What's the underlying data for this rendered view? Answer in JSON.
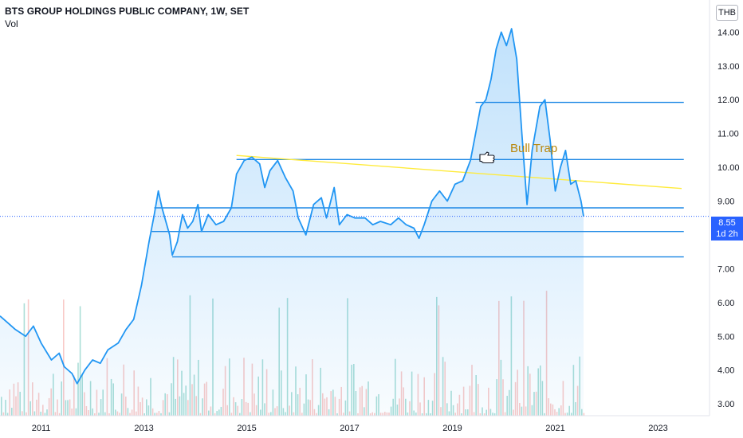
{
  "header": {
    "title": "BTS GROUP HOLDINGS PUBLIC COMPANY, 1W, SET",
    "volume_label": "Vol"
  },
  "toolbar": {
    "currency": "THB"
  },
  "price_badge": {
    "price": "8.55",
    "countdown": "1d 2h"
  },
  "colors": {
    "price_line": "#2196f3",
    "area_fill": "#2196f3",
    "hlines": "#1e88e5",
    "trendline": "#ffeb3b",
    "annotation_text": "#b8860b",
    "badge": "#2962ff",
    "vol_up": "#8fd3c9",
    "vol_down": "#f7b8b5",
    "axis_text": "#131722"
  },
  "chart_data": {
    "type": "line",
    "title": "BTS GROUP HOLDINGS PUBLIC COMPANY, 1W, SET",
    "xlabel": "",
    "ylabel": "",
    "xlim": [
      2010.2,
      2024.0
    ],
    "ylim": [
      2.65,
      14.95
    ],
    "x_ticks": [
      "2011",
      "2013",
      "2015",
      "2017",
      "2019",
      "2021",
      "2023"
    ],
    "y_ticks": [
      "3.00",
      "4.00",
      "5.00",
      "6.00",
      "7.00",
      "8.00",
      "9.00",
      "10.00",
      "11.00",
      "12.00",
      "13.00",
      "14.00"
    ],
    "series": [
      {
        "points": [
          [
            2010.2,
            5.6
          ],
          [
            2010.35,
            5.4
          ],
          [
            2010.5,
            5.2
          ],
          [
            2010.7,
            5.0
          ],
          [
            2010.85,
            5.3
          ],
          [
            2011.0,
            4.8
          ],
          [
            2011.2,
            4.3
          ],
          [
            2011.35,
            4.5
          ],
          [
            2011.45,
            4.1
          ],
          [
            2011.6,
            3.9
          ],
          [
            2011.7,
            3.6
          ],
          [
            2011.85,
            4.0
          ],
          [
            2012.0,
            4.3
          ],
          [
            2012.15,
            4.2
          ],
          [
            2012.3,
            4.6
          ],
          [
            2012.5,
            4.8
          ],
          [
            2012.65,
            5.2
          ],
          [
            2012.8,
            5.5
          ],
          [
            2012.95,
            6.5
          ],
          [
            2013.1,
            7.8
          ],
          [
            2013.2,
            8.6
          ],
          [
            2013.28,
            9.3
          ],
          [
            2013.35,
            8.8
          ],
          [
            2013.5,
            8.0
          ],
          [
            2013.55,
            7.4
          ],
          [
            2013.65,
            7.8
          ],
          [
            2013.75,
            8.6
          ],
          [
            2013.85,
            8.2
          ],
          [
            2013.95,
            8.4
          ],
          [
            2014.05,
            8.9
          ],
          [
            2014.12,
            8.1
          ],
          [
            2014.25,
            8.6
          ],
          [
            2014.4,
            8.3
          ],
          [
            2014.55,
            8.4
          ],
          [
            2014.7,
            8.8
          ],
          [
            2014.8,
            9.8
          ],
          [
            2014.95,
            10.2
          ],
          [
            2015.1,
            10.3
          ],
          [
            2015.25,
            10.1
          ],
          [
            2015.35,
            9.4
          ],
          [
            2015.45,
            9.9
          ],
          [
            2015.6,
            10.2
          ],
          [
            2015.75,
            9.7
          ],
          [
            2015.9,
            9.3
          ],
          [
            2016.0,
            8.5
          ],
          [
            2016.15,
            8.0
          ],
          [
            2016.3,
            8.9
          ],
          [
            2016.45,
            9.1
          ],
          [
            2016.55,
            8.5
          ],
          [
            2016.7,
            9.4
          ],
          [
            2016.8,
            8.3
          ],
          [
            2016.95,
            8.6
          ],
          [
            2017.1,
            8.5
          ],
          [
            2017.3,
            8.5
          ],
          [
            2017.45,
            8.3
          ],
          [
            2017.6,
            8.4
          ],
          [
            2017.8,
            8.3
          ],
          [
            2017.95,
            8.5
          ],
          [
            2018.1,
            8.3
          ],
          [
            2018.25,
            8.2
          ],
          [
            2018.35,
            7.9
          ],
          [
            2018.45,
            8.3
          ],
          [
            2018.6,
            9.0
          ],
          [
            2018.75,
            9.3
          ],
          [
            2018.9,
            9.0
          ],
          [
            2019.05,
            9.5
          ],
          [
            2019.2,
            9.6
          ],
          [
            2019.35,
            10.2
          ],
          [
            2019.45,
            11.0
          ],
          [
            2019.55,
            11.8
          ],
          [
            2019.65,
            12.0
          ],
          [
            2019.75,
            12.6
          ],
          [
            2019.85,
            13.5
          ],
          [
            2019.95,
            14.0
          ],
          [
            2020.05,
            13.6
          ],
          [
            2020.15,
            14.1
          ],
          [
            2020.25,
            13.2
          ],
          [
            2020.35,
            11.0
          ],
          [
            2020.45,
            8.9
          ],
          [
            2020.55,
            10.5
          ],
          [
            2020.7,
            11.8
          ],
          [
            2020.8,
            12.0
          ],
          [
            2020.9,
            10.8
          ],
          [
            2021.0,
            9.3
          ],
          [
            2021.1,
            10.0
          ],
          [
            2021.2,
            10.5
          ],
          [
            2021.3,
            9.5
          ],
          [
            2021.4,
            9.6
          ],
          [
            2021.5,
            9.0
          ],
          [
            2021.55,
            8.55
          ]
        ]
      }
    ],
    "horizontal_lines": [
      11.92,
      10.23,
      8.8,
      8.1,
      7.35
    ],
    "trendline": [
      [
        2014.8,
        10.35
      ],
      [
        2024.0,
        9.35
      ]
    ],
    "annotation": {
      "text": "Bull Trap"
    },
    "last_price": 8.55,
    "grid": false,
    "volume": {
      "label": "Vol",
      "max_visible_share": 0.3
    }
  }
}
